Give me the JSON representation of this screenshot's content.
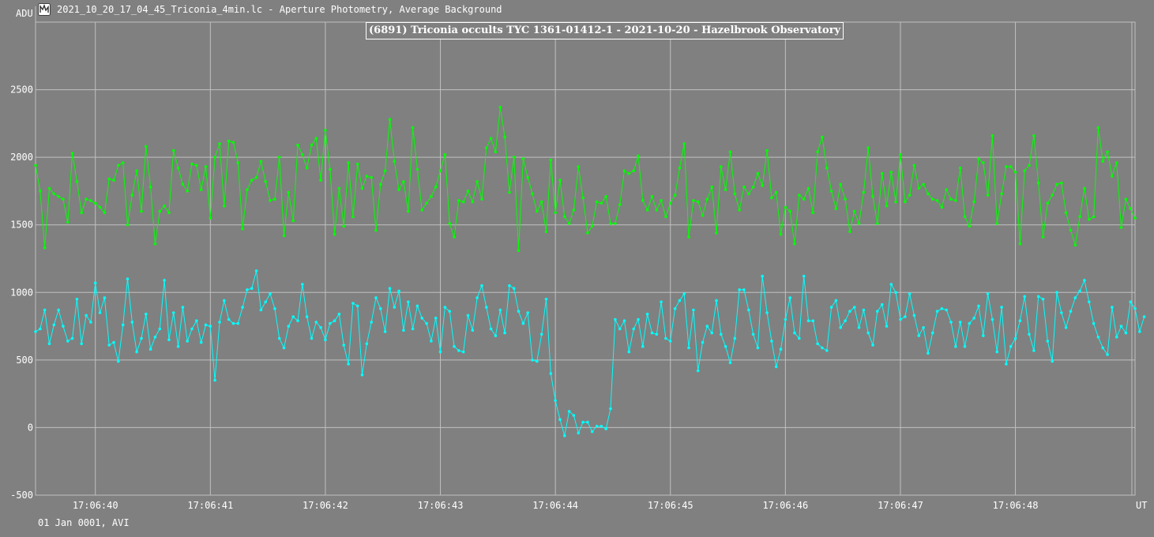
{
  "window": {
    "title": "2021_10_20_17_04_45_Triconia_4min.lc - Aperture Photometry, Average Background"
  },
  "footer": {
    "date_label": "01 Jan 0001, AVI"
  },
  "colors": {
    "background": "#808080",
    "grid": "#c0c0c0",
    "text": "#ffffff",
    "target_series": "#00ffff",
    "comparison_series": "#00ff00"
  },
  "chart_data": {
    "type": "line",
    "title": "(6891) Triconia occults TYC 1361-01412-1 - 2021-10-20 - Hazelbrook Observatory",
    "ylabel": "ADU",
    "xlabel": "UT",
    "ylim": [
      -500,
      3000
    ],
    "xlim": [
      39.48,
      49.04
    ],
    "grid": true,
    "y_ticks": [
      -500,
      0,
      500,
      1000,
      1500,
      2000,
      2500
    ],
    "y_tick_labels": [
      "-500",
      "0",
      "500",
      "1000",
      "1500",
      "2000",
      "2500"
    ],
    "x_ticks": [
      40,
      41,
      42,
      43,
      44,
      45,
      46,
      47,
      48
    ],
    "x_tick_labels": [
      "17:06:40",
      "17:06:41",
      "17:06:42",
      "17:06:43",
      "17:06:44",
      "17:06:45",
      "17:06:46",
      "17:06:47",
      "17:06:48"
    ],
    "x_start": 39.48,
    "x_step": 0.04,
    "series": [
      {
        "color": "#00ff00",
        "values": [
          1940,
          1750,
          1330,
          1770,
          1730,
          1710,
          1690,
          1520,
          2030,
          1820,
          1590,
          1690,
          1680,
          1660,
          1630,
          1590,
          1840,
          1830,
          1940,
          1960,
          1500,
          1720,
          1900,
          1600,
          2080,
          1780,
          1360,
          1600,
          1640,
          1590,
          2050,
          1920,
          1800,
          1750,
          1950,
          1940,
          1760,
          1930,
          1550,
          2000,
          2100,
          1640,
          2120,
          2110,
          1960,
          1470,
          1760,
          1830,
          1850,
          1970,
          1820,
          1680,
          1690,
          2000,
          1420,
          1740,
          1530,
          2090,
          2020,
          1920,
          2090,
          2140,
          1830,
          2200,
          1910,
          1430,
          1770,
          1490,
          1960,
          1560,
          1950,
          1770,
          1860,
          1850,
          1460,
          1800,
          1900,
          2280,
          1970,
          1760,
          1820,
          1600,
          2220,
          1910,
          1610,
          1660,
          1710,
          1780,
          1900,
          2020,
          1510,
          1410,
          1680,
          1670,
          1750,
          1670,
          1820,
          1690,
          2070,
          2140,
          2040,
          2370,
          2150,
          1740,
          2000,
          1310,
          1990,
          1850,
          1730,
          1600,
          1670,
          1450,
          1980,
          1590,
          1830,
          1560,
          1510,
          1610,
          1930,
          1700,
          1440,
          1490,
          1670,
          1660,
          1710,
          1510,
          1510,
          1650,
          1900,
          1880,
          1900,
          2010,
          1680,
          1610,
          1710,
          1610,
          1680,
          1560,
          1660,
          1720,
          1920,
          2100,
          1410,
          1680,
          1670,
          1570,
          1690,
          1780,
          1440,
          1930,
          1760,
          2040,
          1730,
          1610,
          1780,
          1730,
          1780,
          1880,
          1790,
          2050,
          1700,
          1740,
          1430,
          1630,
          1600,
          1360,
          1720,
          1690,
          1770,
          1590,
          2040,
          2150,
          1920,
          1750,
          1620,
          1800,
          1690,
          1450,
          1600,
          1510,
          1740,
          2070,
          1710,
          1510,
          1880,
          1640,
          1890,
          1670,
          2020,
          1670,
          1720,
          1940,
          1770,
          1800,
          1730,
          1690,
          1680,
          1630,
          1760,
          1690,
          1680,
          1920,
          1560,
          1490,
          1670,
          1990,
          1960,
          1720,
          2160,
          1510,
          1730,
          1930,
          1930,
          1890,
          1360,
          1900,
          1940,
          2160,
          1810,
          1410,
          1660,
          1720,
          1800,
          1810,
          1590,
          1460,
          1350,
          1560,
          1770,
          1540,
          1560,
          2220,
          1970,
          2040,
          1860,
          1960,
          1480,
          1690,
          1620,
          1550
        ]
      },
      {
        "color": "#00ffff",
        "values": [
          710,
          730,
          870,
          620,
          760,
          870,
          750,
          640,
          660,
          950,
          620,
          830,
          780,
          1070,
          850,
          960,
          610,
          630,
          490,
          760,
          1100,
          780,
          560,
          660,
          840,
          580,
          670,
          730,
          1090,
          650,
          850,
          600,
          890,
          640,
          730,
          790,
          630,
          760,
          750,
          350,
          780,
          940,
          800,
          770,
          770,
          890,
          1020,
          1030,
          1160,
          870,
          930,
          990,
          880,
          660,
          590,
          750,
          820,
          790,
          1060,
          820,
          660,
          780,
          740,
          650,
          770,
          790,
          840,
          610,
          470,
          920,
          900,
          390,
          620,
          780,
          960,
          880,
          710,
          1030,
          890,
          1010,
          720,
          930,
          730,
          900,
          810,
          770,
          640,
          810,
          560,
          890,
          860,
          600,
          570,
          560,
          830,
          720,
          960,
          1050,
          890,
          730,
          680,
          870,
          700,
          1050,
          1030,
          860,
          770,
          850,
          500,
          490,
          690,
          950,
          400,
          200,
          60,
          -60,
          120,
          90,
          -40,
          40,
          40,
          -30,
          10,
          10,
          -10,
          140,
          800,
          730,
          790,
          560,
          730,
          800,
          600,
          840,
          700,
          690,
          930,
          660,
          640,
          880,
          940,
          990,
          590,
          870,
          420,
          630,
          750,
          700,
          940,
          690,
          600,
          480,
          660,
          1020,
          1020,
          870,
          690,
          590,
          1120,
          850,
          640,
          450,
          580,
          800,
          960,
          700,
          660,
          1120,
          790,
          790,
          620,
          590,
          570,
          890,
          940,
          740,
          790,
          860,
          890,
          740,
          870,
          700,
          610,
          860,
          910,
          750,
          1060,
          1000,
          800,
          820,
          990,
          830,
          680,
          740,
          550,
          700,
          860,
          880,
          870,
          780,
          600,
          780,
          600,
          770,
          810,
          900,
          680,
          990,
          800,
          560,
          890,
          470,
          600,
          660,
          790,
          970,
          690,
          570,
          970,
          950,
          640,
          490,
          1000,
          850,
          740,
          860,
          960,
          1010,
          1090,
          930,
          770,
          670,
          590,
          540,
          890,
          670,
          750,
          700,
          930,
          880,
          710,
          820
        ]
      }
    ]
  }
}
